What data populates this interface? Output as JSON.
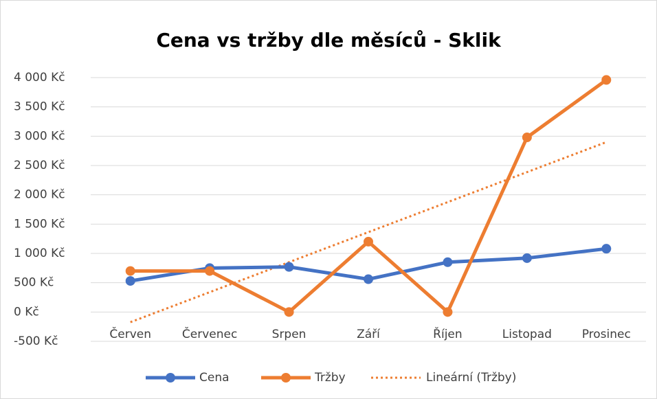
{
  "chart_data": {
    "type": "line",
    "title": "Cena vs tržby dle měsíců - Sklik",
    "categories": [
      "Červen",
      "Červenec",
      "Srpen",
      "Září",
      "Říjen",
      "Listopad",
      "Prosinec"
    ],
    "series": [
      {
        "name": "Cena",
        "color": "#4472c4",
        "values": [
          530,
          750,
          770,
          560,
          850,
          920,
          1080
        ]
      },
      {
        "name": "Tržby",
        "color": "#ed7d31",
        "values": [
          700,
          700,
          0,
          1200,
          0,
          2980,
          3960
        ]
      }
    ],
    "trendlines": [
      {
        "name": "Lineární (Tržby)",
        "color": "#ed7d31",
        "kind": "linear",
        "series": 1
      }
    ],
    "ylim": [
      -500,
      4000
    ],
    "yticks": [
      {
        "value": -500,
        "label": "-500 Kč"
      },
      {
        "value": 0,
        "label": "0 Kč"
      },
      {
        "value": 500,
        "label": "500 Kč"
      },
      {
        "value": 1000,
        "label": "1 000 Kč"
      },
      {
        "value": 1500,
        "label": "1 500 Kč"
      },
      {
        "value": 2000,
        "label": "2 000 Kč"
      },
      {
        "value": 2500,
        "label": "2 500 Kč"
      },
      {
        "value": 3000,
        "label": "3 000 Kč"
      },
      {
        "value": 3500,
        "label": "3 500 Kč"
      },
      {
        "value": 4000,
        "label": "4 000 Kč"
      }
    ],
    "grid": true,
    "legend": "bottom"
  }
}
